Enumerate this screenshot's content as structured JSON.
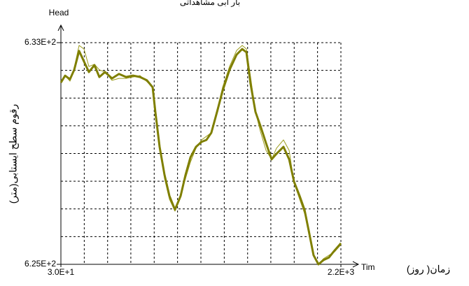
{
  "chart_data": {
    "type": "line",
    "title": "بار آبی مشاهداتی",
    "y_axis_name": "Head",
    "x_axis_name": "Tim",
    "y_label": "رقوم سطح ایستابی(متر)",
    "x_label": "زمان( روز)",
    "x": [
      30,
      62.6,
      100.5,
      133,
      171,
      209,
      247,
      290,
      328,
      372,
      426,
      480,
      535,
      589,
      643,
      697,
      741,
      762,
      795,
      833,
      871,
      914,
      958,
      996,
      1034,
      1077,
      1120,
      1158,
      1196,
      1240,
      1283,
      1337,
      1392,
      1435,
      1468,
      1500,
      1538,
      1576,
      1620,
      1663,
      1701,
      1755,
      1799,
      1837,
      1880,
      1918,
      1956,
      1988,
      2026,
      2064,
      2108,
      2151,
      2200
    ],
    "series": [
      {
        "color": "#9c9c1c",
        "line_width": 1,
        "values": [
          631.56,
          631.81,
          631.61,
          632.09,
          632.9,
          632.77,
          632.14,
          632.22,
          632.02,
          631.94,
          631.64,
          631.71,
          631.71,
          631.76,
          631.81,
          631.59,
          631.39,
          630.38,
          629.37,
          628.1,
          627.35,
          626.92,
          627.52,
          628.1,
          628.69,
          629.19,
          629.49,
          629.62,
          629.75,
          630.55,
          631.39,
          632.14,
          632.72,
          632.9,
          632.77,
          631.76,
          630.5,
          629.8,
          629.11,
          628.79,
          629.19,
          629.49,
          629.11,
          627.93,
          627.35,
          626.84,
          626.21,
          625.33,
          625,
          625.2,
          625.33,
          625.45,
          625.71
        ]
      },
      {
        "color": "#7f7f00",
        "line_width": 3,
        "values": [
          631.56,
          631.81,
          631.68,
          632.02,
          632.7,
          632.32,
          631.94,
          632.19,
          631.76,
          631.94,
          631.71,
          631.87,
          631.76,
          631.81,
          631.76,
          631.64,
          631.39,
          630.5,
          629.24,
          628.23,
          627.47,
          626.97,
          627.47,
          628.23,
          628.86,
          629.24,
          629.42,
          629.49,
          629.75,
          630.5,
          631.26,
          632.02,
          632.57,
          632.77,
          632.65,
          631.51,
          630.5,
          630,
          629.37,
          628.79,
          628.99,
          629.24,
          628.79,
          627.98,
          627.47,
          626.97,
          626.09,
          625.33,
          625,
          625.15,
          625.25,
          625.5,
          625.76
        ]
      }
    ],
    "xlim": [
      30,
      2200
    ],
    "ylim": [
      625,
      633
    ],
    "xticks": [
      {
        "value": 30,
        "label": "3.0E+1"
      },
      {
        "value": 2200,
        "label": "2.2E+3"
      }
    ],
    "yticks": [
      {
        "value": 625,
        "label": "6.25E+2"
      },
      {
        "value": 633,
        "label": "6.33E+2"
      }
    ],
    "grid": true,
    "xgrid": [
      30,
      211,
      392,
      572,
      753,
      934,
      1115,
      1296,
      1477,
      1657,
      1838,
      2019,
      2200
    ],
    "ygrid": [
      625,
      626,
      627,
      628,
      629,
      630,
      631,
      632,
      633
    ]
  }
}
